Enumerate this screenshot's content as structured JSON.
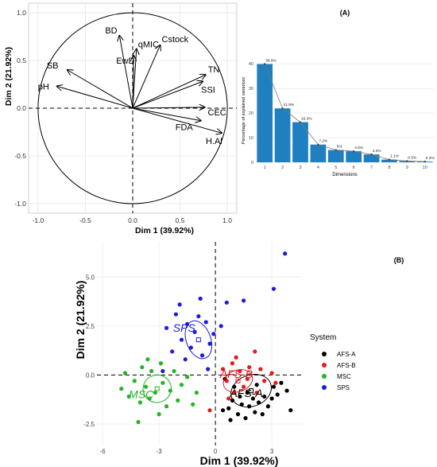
{
  "chart_data": [
    {
      "panel": "A-left",
      "type": "scatter",
      "subtype": "pca-variable-correlation-circle",
      "xlabel": "Dim 1 (39.92%)",
      "ylabel": "Dim 2 (21.92%)",
      "xlim": [
        -1.1,
        1.1
      ],
      "ylim": [
        -1.1,
        1.1
      ],
      "xticks": [
        "-1.0",
        "-0.5",
        "0.0",
        "0.5",
        "1.0"
      ],
      "yticks": [
        "-1.0",
        "-0.5",
        "0.0",
        "0.5",
        "1.0"
      ],
      "grid": true,
      "vectors": [
        {
          "label": "BD",
          "x": -0.14,
          "y": 0.76
        },
        {
          "label": "qMIC",
          "x": 0.04,
          "y": 0.62
        },
        {
          "label": "EwD",
          "x": 0.01,
          "y": 0.55
        },
        {
          "label": "Cstock",
          "x": 0.29,
          "y": 0.66
        },
        {
          "label": "SB",
          "x": -0.69,
          "y": 0.4
        },
        {
          "label": "pH",
          "x": -0.8,
          "y": 0.23
        },
        {
          "label": "TN",
          "x": 0.77,
          "y": 0.35
        },
        {
          "label": "SSI",
          "x": 0.74,
          "y": 0.28
        },
        {
          "label": "CEC",
          "x": 0.76,
          "y": 0.01
        },
        {
          "label": "FDA",
          "x": 0.72,
          "y": -0.13
        },
        {
          "label": "H.Al",
          "x": 0.94,
          "y": -0.26
        }
      ]
    },
    {
      "panel": "A-right",
      "type": "bar",
      "title": "(A)",
      "xlabel": "Dimensions",
      "ylabel": "Percentage of explained variances",
      "categories": [
        "1",
        "2",
        "3",
        "4",
        "5",
        "6",
        "7",
        "8",
        "9",
        "10"
      ],
      "values": [
        39.9,
        21.9,
        16.3,
        7.2,
        5.0,
        4.5,
        3.2,
        1.1,
        0.5,
        0.3
      ],
      "value_labels": [
        "39.9%",
        "21.9%",
        "16.3%",
        "7.2%",
        "5%",
        "4.5%",
        "3.2%",
        "1.1%",
        "0.5%",
        "0.3%"
      ],
      "ylim": [
        0,
        42
      ],
      "yticks": [
        "0",
        "10",
        "20",
        "30",
        "40"
      ],
      "bar_color": "#1f7fbf",
      "line_color": "#7a7a7a"
    },
    {
      "panel": "B",
      "type": "scatter",
      "subtype": "pca-individuals",
      "title": "(B)",
      "xlabel": "Dim 1 (39.92%)",
      "ylabel": "Dim 2 (21.92%)",
      "xlim": [
        -6.3,
        4.6
      ],
      "ylim": [
        -3.6,
        6.8
      ],
      "xticks": [
        "-6",
        "-3",
        "0",
        "3"
      ],
      "xtick_values": [
        -6,
        -3,
        0,
        3
      ],
      "yticks": [
        "-2.5",
        "0.0",
        "2.5",
        "5.0"
      ],
      "ytick_values": [
        -2.5,
        0,
        2.5,
        5.0
      ],
      "grid": true,
      "legend": {
        "title": "System",
        "placement": "right"
      },
      "series": [
        {
          "name": "AFS-A",
          "color": "#000000",
          "centroid": [
            1.9,
            -0.8
          ],
          "ellipse_rx": 1.1,
          "ellipse_ry": 0.8,
          "points": [
            [
              0.4,
              -1.8
            ],
            [
              0.7,
              -1.7
            ],
            [
              0.8,
              -2.3
            ],
            [
              1.2,
              -2.0
            ],
            [
              1.4,
              -1.5
            ],
            [
              1.6,
              -2.2
            ],
            [
              1.8,
              -1.6
            ],
            [
              2.0,
              -1.2
            ],
            [
              2.1,
              -1.9
            ],
            [
              2.3,
              -1.4
            ],
            [
              2.5,
              -2.0
            ],
            [
              2.6,
              -1.1
            ],
            [
              2.8,
              -1.6
            ],
            [
              3.0,
              -1.2
            ],
            [
              3.1,
              -0.6
            ],
            [
              3.3,
              -1.0
            ],
            [
              3.5,
              -0.4
            ],
            [
              3.8,
              -0.8
            ],
            [
              4.0,
              -1.8
            ],
            [
              1.0,
              -0.6
            ],
            [
              0.5,
              -0.2
            ],
            [
              1.3,
              -1.1
            ],
            [
              2.2,
              -0.5
            ],
            [
              1.7,
              -0.9
            ],
            [
              0.9,
              -1.3
            ]
          ]
        },
        {
          "name": "AFS-B",
          "color": "#e41a1c",
          "centroid": [
            1.2,
            -0.3
          ],
          "ellipse_rx": 0.8,
          "ellipse_ry": 0.55,
          "points": [
            [
              0.4,
              0.3
            ],
            [
              0.6,
              -0.3
            ],
            [
              0.9,
              0.6
            ],
            [
              1.0,
              -0.9
            ],
            [
              1.3,
              0.2
            ],
            [
              1.5,
              -0.6
            ],
            [
              1.8,
              0.4
            ],
            [
              2.1,
              1.2
            ],
            [
              2.4,
              0.3
            ],
            [
              2.6,
              -0.3
            ],
            [
              3.0,
              0.1
            ],
            [
              3.2,
              -0.4
            ],
            [
              1.1,
              0.9
            ],
            [
              0.7,
              -1.2
            ],
            [
              1.7,
              -0.2
            ],
            [
              2.2,
              -0.9
            ],
            [
              -0.3,
              -1.8
            ]
          ]
        },
        {
          "name": "MSC",
          "color": "#22b422",
          "centroid": [
            -3.1,
            -0.7
          ],
          "ellipse_rx": 0.75,
          "ellipse_ry": 0.7,
          "points": [
            [
              -5.0,
              -0.7
            ],
            [
              -4.8,
              0.1
            ],
            [
              -4.6,
              -1.1
            ],
            [
              -4.3,
              -0.3
            ],
            [
              -4.0,
              -1.4
            ],
            [
              -3.9,
              0.4
            ],
            [
              -3.7,
              -0.6
            ],
            [
              -3.5,
              -1.2
            ],
            [
              -3.4,
              0.2
            ],
            [
              -3.2,
              -0.9
            ],
            [
              -3.0,
              -2.0
            ],
            [
              -2.8,
              -0.4
            ],
            [
              -2.6,
              -1.6
            ],
            [
              -2.4,
              -0.8
            ],
            [
              -2.2,
              0.2
            ],
            [
              -2.0,
              -1.3
            ],
            [
              -1.8,
              -0.5
            ],
            [
              -1.5,
              -0.1
            ],
            [
              -1.2,
              -1.5
            ],
            [
              -3.6,
              0.8
            ],
            [
              -2.9,
              0.6
            ],
            [
              -1.0,
              -0.9
            ],
            [
              -4.1,
              -2.4
            ]
          ]
        },
        {
          "name": "SPS",
          "color": "#1a1adc",
          "centroid": [
            -0.9,
            1.8
          ],
          "ellipse_rx": 0.65,
          "ellipse_ry": 1.0,
          "points": [
            [
              -2.6,
              2.4
            ],
            [
              -2.3,
              1.2
            ],
            [
              -2.1,
              3.1
            ],
            [
              -1.8,
              1.8
            ],
            [
              -1.6,
              0.8
            ],
            [
              -1.5,
              2.6
            ],
            [
              -1.3,
              1.4
            ],
            [
              -1.1,
              2.2
            ],
            [
              -0.9,
              3.0
            ],
            [
              -0.7,
              1.0
            ],
            [
              -0.5,
              2.7
            ],
            [
              -0.3,
              1.6
            ],
            [
              -0.1,
              2.1
            ],
            [
              -2.8,
              0.2
            ],
            [
              -0.8,
              3.9
            ],
            [
              0.3,
              2.5
            ],
            [
              0.6,
              3.7
            ],
            [
              1.5,
              3.8
            ],
            [
              3.1,
              4.4
            ],
            [
              3.7,
              6.2
            ],
            [
              -1.9,
              3.6
            ],
            [
              -0.4,
              0.3
            ]
          ]
        }
      ]
    }
  ],
  "groups": [
    "AFS-A",
    "AFS-B",
    "MSC",
    "SPS"
  ]
}
